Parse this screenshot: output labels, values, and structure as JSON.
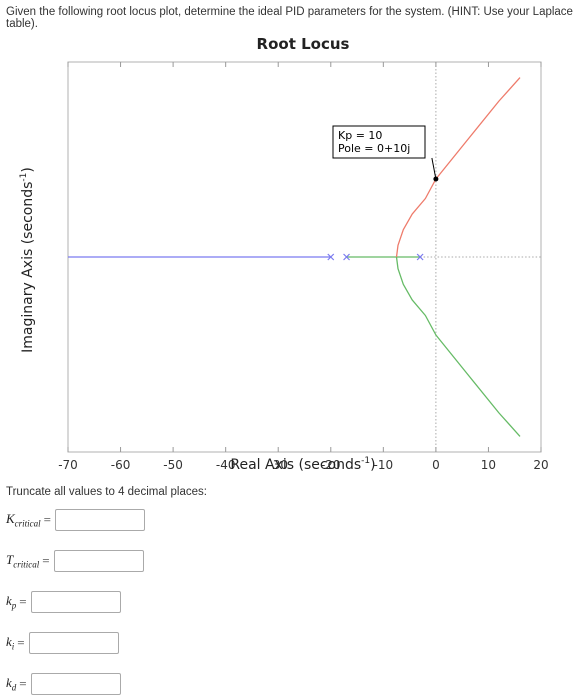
{
  "question": "Given the following root locus plot, determine the ideal PID parameters for the system. (HINT: Use your Laplace table).",
  "chart_data": {
    "type": "line",
    "title": "Root Locus",
    "xlabel": "Real Axis (seconds",
    "xlabel_sup": "-1",
    "xlabel_end": ")",
    "ylabel": "Imaginary Axis (seconds",
    "ylabel_sup": "-1",
    "ylabel_end": ")",
    "xlim": [
      -70,
      20
    ],
    "ylim": [
      -25,
      25
    ],
    "x_ticks": [
      -70,
      -60,
      -50,
      -40,
      -30,
      -20,
      -10,
      0,
      10,
      20
    ],
    "x_tick_labels": [
      "-70",
      "-60",
      "-50",
      "-40",
      "-30",
      "-20",
      "-10",
      "0",
      "10",
      "20"
    ],
    "grid": false,
    "colors": {
      "blue": "#7b7bf0",
      "green": "#66bb66",
      "red": "#ee7b6b",
      "dotted": "#aaaaaa"
    },
    "series": [
      {
        "color": "blue",
        "points": [
          [
            -70,
            0
          ],
          [
            -20,
            0
          ]
        ]
      },
      {
        "color": "green",
        "points": [
          [
            -17,
            0
          ],
          [
            -7.5,
            0
          ]
        ]
      },
      {
        "color": "green",
        "points": [
          [
            -3,
            0
          ],
          [
            -7.5,
            0
          ]
        ]
      },
      {
        "color": "red",
        "points": [
          [
            -7.5,
            0
          ],
          [
            -7.2,
            1.5
          ],
          [
            -6.2,
            3.5
          ],
          [
            -4.5,
            5.5
          ],
          [
            -2,
            7.5
          ],
          [
            0,
            10
          ],
          [
            6,
            15
          ],
          [
            12,
            20
          ],
          [
            16,
            23
          ]
        ]
      },
      {
        "color": "green",
        "points": [
          [
            -7.5,
            0
          ],
          [
            -7.2,
            -1.5
          ],
          [
            -6.2,
            -3.5
          ],
          [
            -4.5,
            -5.5
          ],
          [
            -2,
            -7.5
          ],
          [
            0,
            -10
          ],
          [
            6,
            -15
          ],
          [
            12,
            -20
          ],
          [
            16,
            -23
          ]
        ]
      }
    ],
    "poles": [
      -20,
      -17,
      -3
    ],
    "datatip": {
      "x": 0,
      "y": 10,
      "lines": [
        "Kp = 10",
        "Pole = 0+10j"
      ]
    }
  },
  "instructions": "Truncate all values to 4 decimal places:",
  "fields": [
    {
      "main": "K",
      "sub": "critical"
    },
    {
      "main": "T",
      "sub": "critical"
    },
    {
      "main": "k",
      "sub": "p"
    },
    {
      "main": "k",
      "sub": "i"
    },
    {
      "main": "k",
      "sub": "d"
    }
  ],
  "equals": "="
}
